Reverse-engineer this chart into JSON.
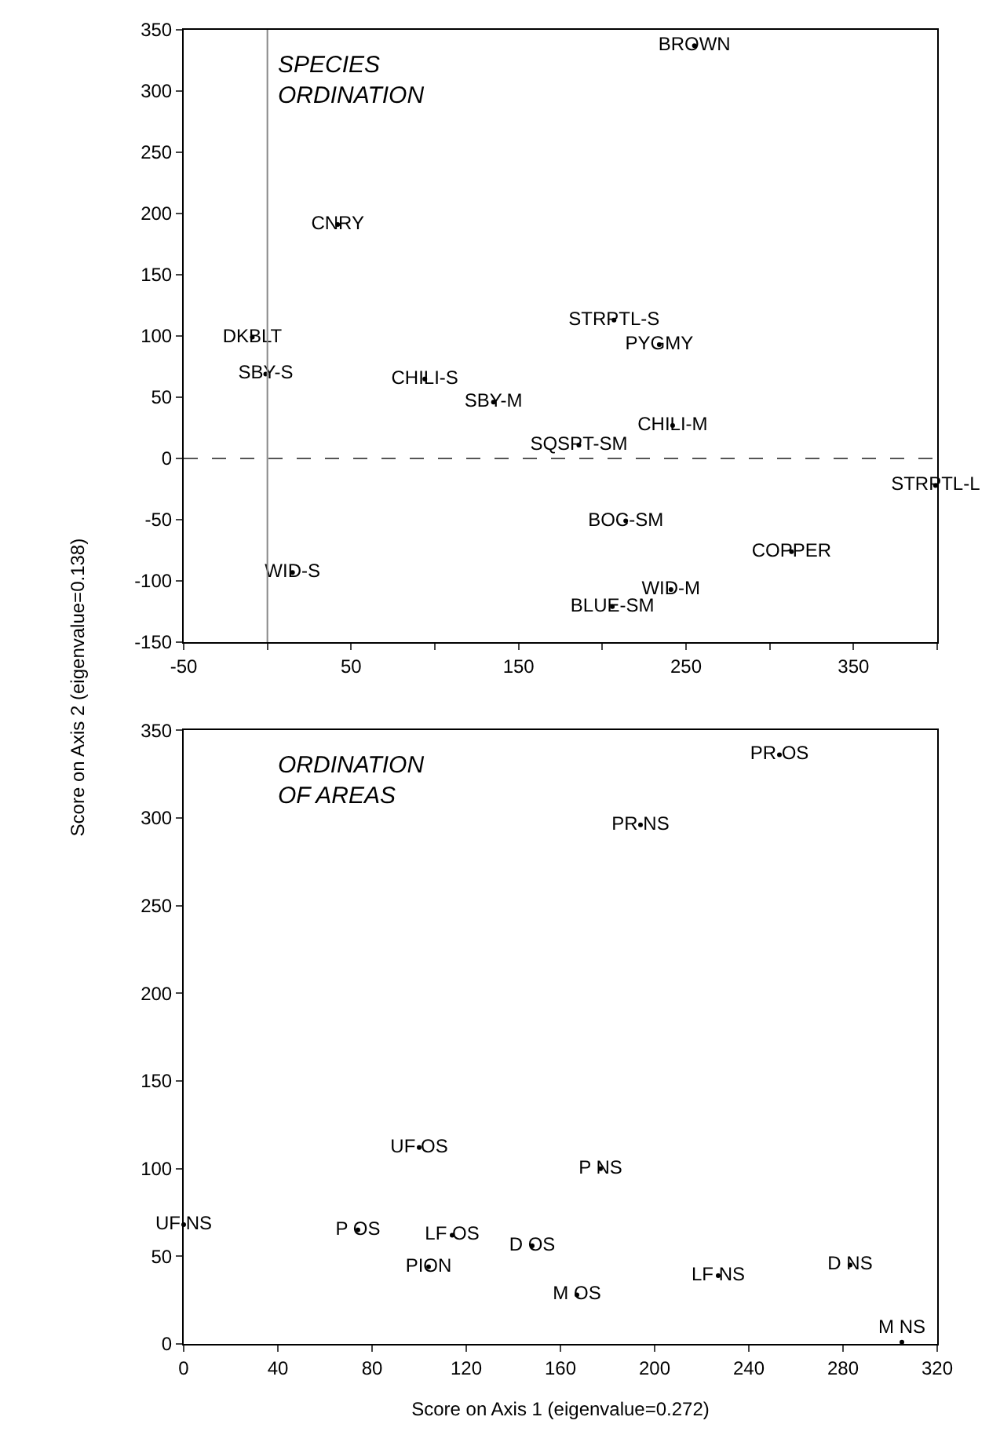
{
  "chart_data": [
    {
      "type": "scatter",
      "title": "SPECIES ORDINATION",
      "ylabel": "Score on Axis 2 (eigenvalue=0.138)",
      "marker": "circle",
      "x": [
        42,
        -9,
        -1,
        94,
        135,
        186,
        15,
        214,
        206,
        241,
        242,
        207,
        234,
        255,
        399,
        313
      ],
      "series": [
        {
          "color": "#000000",
          "values": [
            191,
            99,
            69,
            65,
            46,
            11,
            -93,
            -51,
            -121,
            -107,
            27,
            113,
            93,
            337,
            -22,
            -76
          ],
          "value_labels": [
            "CNRY",
            "DKBLT",
            "SBY-S",
            "CHILI-S",
            "SBY-M",
            "SQSPT-SM",
            "WID-S",
            "BOC-SM",
            "BLUE-SM",
            "WID-M",
            "CHILI-M",
            "STRPTL-S",
            "PYGMY",
            "BROWN",
            "STRPTL-L",
            "COPPER"
          ]
        }
      ],
      "xlim": [
        -50,
        400
      ],
      "xticks": [
        -50,
        {
          "value": 0,
          "label": null
        },
        50,
        {
          "value": 100,
          "label": null
        },
        150,
        {
          "value": 200,
          "label": null
        },
        250,
        {
          "value": 300,
          "label": null
        },
        350,
        {
          "value": 400,
          "label": null
        }
      ],
      "ylim": [
        -150,
        350
      ],
      "yticks": [
        -150,
        -100,
        -50,
        0,
        50,
        100,
        150,
        200,
        250,
        300,
        350
      ],
      "ref_lines": [
        {
          "axis": "x",
          "value": 0,
          "color": "#888888",
          "line_style": "solid"
        },
        {
          "axis": "y",
          "value": 0,
          "color": "#555555",
          "line_style": "dashed"
        }
      ]
    },
    {
      "type": "scatter",
      "title": "ORDINATION OF AREAS",
      "xlabel": "Score on Axis 1 (eigenvalue=0.272)",
      "marker": "circle",
      "x": [
        0,
        74,
        100,
        114,
        104,
        148,
        167,
        177,
        227,
        283,
        305,
        194,
        253
      ],
      "series": [
        {
          "color": "#000000",
          "values": [
            68,
            65,
            112,
            62,
            44,
            56,
            28,
            100,
            39,
            45,
            1,
            296,
            336
          ],
          "value_labels": [
            "UF NS",
            "P OS",
            "UF OS",
            "LF OS",
            "PION",
            "D OS",
            "M OS",
            "P NS",
            "LF NS",
            "D NS",
            "M NS",
            "PR NS",
            "PR OS"
          ]
        }
      ],
      "xlim": [
        0,
        320
      ],
      "xticks": [
        0,
        40,
        80,
        120,
        160,
        200,
        240,
        280,
        320
      ],
      "ylim": [
        0,
        350
      ],
      "yticks": [
        0,
        50,
        100,
        150,
        200,
        250,
        300,
        350
      ]
    }
  ]
}
